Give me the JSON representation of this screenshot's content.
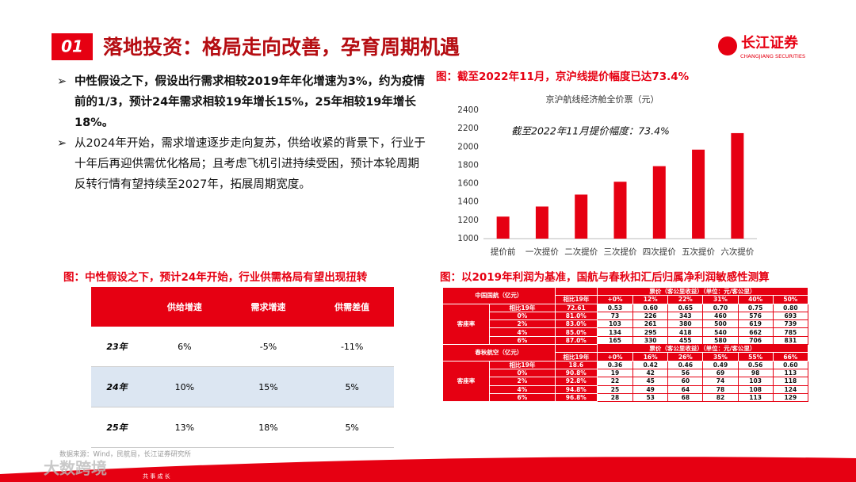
{
  "header": {
    "badge": "01",
    "title": "落地投资：格局走向改善，孕育周期机遇",
    "logo": "长江证券",
    "logo_en": "CHANGJIANG SECURITIES"
  },
  "bullets": [
    "中性假设之下，假设出行需求相较2019年年化增速为3%，约为疫情前的1/3，预计24年需求相较19年增长15%，25年相较19年增长18%。",
    "从2024年开始，需求增速逐步走向复苏，供给收紧的背景下，行业于十年后再迎供需优化格局；且考虑飞机引进持续受困，预计本轮周期反转行情有望持续至2027年，拓展周期宽度。"
  ],
  "chart_data": {
    "type": "bar",
    "caption": "图：截至2022年11月，京沪线提价幅度已达73.4%",
    "title": "京沪航线经济舱全价票（元）",
    "annotation": "截至2022年11月提价幅度：73.4%",
    "categories": [
      "提价前",
      "一次提价",
      "二次提价",
      "三次提价",
      "四次提价",
      "五次提价",
      "六次提价"
    ],
    "values": [
      1240,
      1350,
      1480,
      1620,
      1790,
      1970,
      2150
    ],
    "color": "#e60012",
    "ylim": [
      1000,
      2400
    ],
    "yticks": [
      1000,
      1200,
      1400,
      1600,
      1800,
      2000,
      2200,
      2400
    ],
    "grid": false
  },
  "supply_table": {
    "caption": "图：中性假设之下，预计24年开始，行业供需格局有望出现扭转",
    "header": [
      "供给增速",
      "需求增速",
      "供需差值"
    ],
    "rows": [
      {
        "label": "23年",
        "cells": [
          "6%",
          "-5%",
          "-11%"
        ]
      },
      {
        "label": "24年",
        "cells": [
          "10%",
          "15%",
          "5%"
        ]
      },
      {
        "label": "25年",
        "cells": [
          "13%",
          "18%",
          "5%"
        ]
      }
    ]
  },
  "profit_table": {
    "caption": "图：以2019年利润为基准，国航与春秋扣汇后归属净利润敏感性测算",
    "sections": [
      {
        "company": "中国国航（亿元）",
        "header": "票价（客公里收益）（单位：元/客公里）",
        "change_label": "相比19年",
        "changes": [
          "+0%",
          "12%",
          "22%",
          "31%",
          "40%",
          "50%"
        ],
        "base_label": "相比19年",
        "base": "72.61",
        "base_values": [
          "0.53",
          "0.60",
          "0.65",
          "0.70",
          "0.75",
          "0.80"
        ],
        "load_label": "客座率",
        "rows": [
          {
            "delta": "0%",
            "load": "81.0%",
            "values": [
              "73",
              "226",
              "343",
              "460",
              "576",
              "693"
            ]
          },
          {
            "delta": "2%",
            "load": "83.0%",
            "values": [
              "103",
              "261",
              "380",
              "500",
              "619",
              "739"
            ]
          },
          {
            "delta": "4%",
            "load": "85.0%",
            "values": [
              "134",
              "295",
              "418",
              "540",
              "662",
              "785"
            ]
          },
          {
            "delta": "6%",
            "load": "87.0%",
            "values": [
              "165",
              "330",
              "455",
              "580",
              "706",
              "831"
            ]
          }
        ]
      },
      {
        "company": "春秋航空（亿元）",
        "header": "票价（客公里收益）（单位：元/客公里）",
        "change_label": "相比19年",
        "changes": [
          "+0%",
          "16%",
          "26%",
          "35%",
          "55%",
          "66%"
        ],
        "base_label": "相比19年",
        "base": "18.6",
        "base_values": [
          "0.36",
          "0.42",
          "0.46",
          "0.49",
          "0.56",
          "0.60"
        ],
        "load_label": "客座率",
        "rows": [
          {
            "delta": "0%",
            "load": "90.8%",
            "values": [
              "19",
              "42",
              "56",
              "69",
              "98",
              "113"
            ]
          },
          {
            "delta": "2%",
            "load": "92.8%",
            "values": [
              "22",
              "45",
              "60",
              "74",
              "103",
              "118"
            ]
          },
          {
            "delta": "4%",
            "load": "94.8%",
            "values": [
              "25",
              "49",
              "64",
              "78",
              "108",
              "124"
            ]
          },
          {
            "delta": "6%",
            "load": "96.8%",
            "values": [
              "28",
              "53",
              "68",
              "82",
              "113",
              "129"
            ]
          }
        ]
      }
    ]
  },
  "footer": {
    "source": "数据来源：Wind，民航局，长江证券研究所",
    "slogan": "共 事 成 长",
    "watermark": "大数跨境"
  }
}
